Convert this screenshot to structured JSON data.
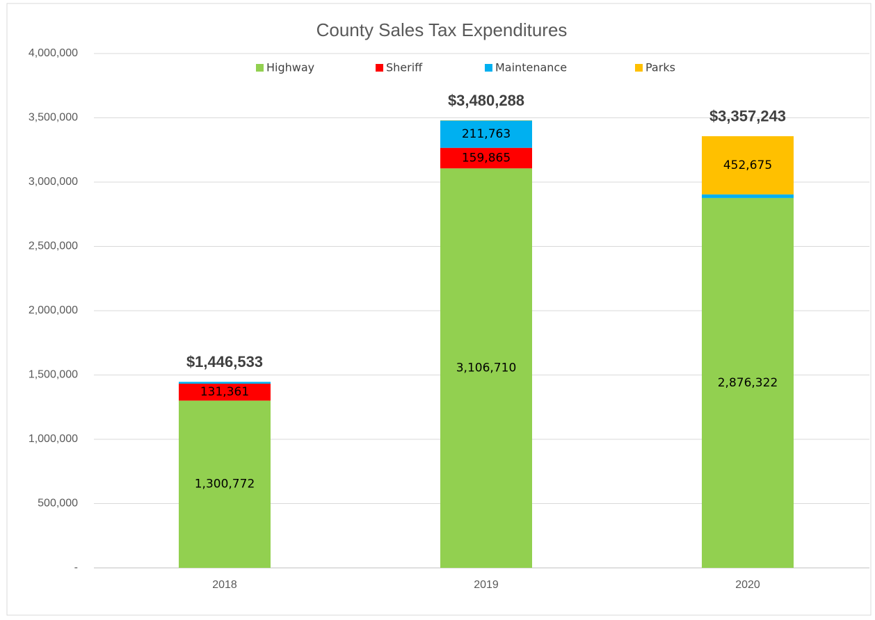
{
  "chart_data": {
    "type": "stacked-bar",
    "title": "County Sales Tax Expenditures",
    "categories": [
      "2018",
      "2019",
      "2020"
    ],
    "series": [
      {
        "name": "Highway",
        "color": "#92d050",
        "values": [
          1300772,
          3106710,
          2876322
        ],
        "value_labels": [
          "1,300,772",
          "3,106,710",
          "2,876,322"
        ]
      },
      {
        "name": "Sheriff",
        "color": "#ff0000",
        "values": [
          131361,
          159865,
          0
        ],
        "value_labels": [
          "131,361",
          "159,865",
          null
        ]
      },
      {
        "name": "Maintenance",
        "color": "#00b0f0",
        "values": [
          14400,
          211763,
          28246
        ],
        "value_labels": [
          null,
          "211,763",
          null
        ]
      },
      {
        "name": "Parks",
        "color": "#ffc000",
        "values": [
          0,
          1950,
          452675
        ],
        "value_labels": [
          null,
          null,
          "452,675"
        ]
      }
    ],
    "totals": {
      "values": [
        1446533,
        3480288,
        3357243
      ],
      "value_labels": [
        "$1,446,533",
        "$3,480,288",
        "$3,357,243"
      ]
    },
    "ylim": [
      0,
      4000000
    ],
    "yticks": [
      {
        "value": 0,
        "label": "-"
      },
      {
        "value": 500000,
        "label": "500,000"
      },
      {
        "value": 1000000,
        "label": "1,000,000"
      },
      {
        "value": 1500000,
        "label": "1,500,000"
      },
      {
        "value": 2000000,
        "label": "2,000,000"
      },
      {
        "value": 2500000,
        "label": "2,500,000"
      },
      {
        "value": 3000000,
        "label": "3,000,000"
      },
      {
        "value": 3500000,
        "label": "3,500,000"
      },
      {
        "value": 4000000,
        "label": "4,000,000"
      }
    ],
    "grid": true,
    "legend": "top"
  }
}
